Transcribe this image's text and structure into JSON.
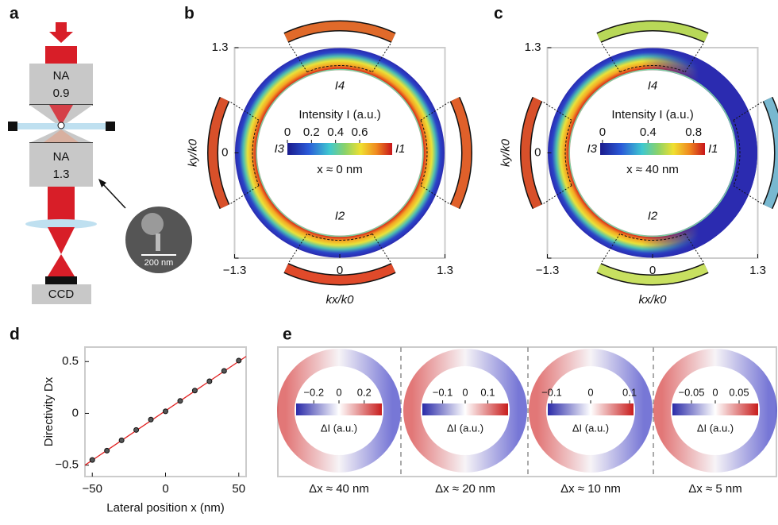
{
  "panel_labels": [
    "a",
    "b",
    "c",
    "d",
    "e"
  ],
  "setup": {
    "objective_top": [
      "NA",
      "0.9"
    ],
    "objective_bottom": [
      "NA",
      "1.3"
    ],
    "detector": "CCD",
    "scale_bar": "200 nm"
  },
  "maps": [
    {
      "xlabel": "kx/k0",
      "ylabel": "ky/k0",
      "xlim": [
        -1.3,
        1.3
      ],
      "xticks": [
        {
          "value": -1.3,
          "label": "−1.3"
        },
        0,
        1.3
      ],
      "ylim": [
        -1.3,
        1.3
      ],
      "yticks": [
        {
          "value": -1.3,
          "label": "−1.3"
        },
        0,
        1.3
      ],
      "regions": [
        "I4",
        "I2"
      ],
      "colorbar": {
        "title": "Intensity I (a.u.)",
        "lim": [
          0,
          0.87
        ],
        "ticks": [
          0,
          0.2,
          0.4,
          0.6
        ],
        "left": "I3",
        "right": "I1",
        "note": "x ≈ 0 nm"
      }
    },
    {
      "xlabel": "kx/k0",
      "ylabel": "ky/k0",
      "xlim": [
        -1.3,
        1.3
      ],
      "xticks": [
        {
          "value": -1.3,
          "label": "−1.3"
        },
        0,
        1.3
      ],
      "ylim": [
        -1.3,
        1.3
      ],
      "yticks": [
        {
          "value": -1.3,
          "label": "−1.3"
        },
        0,
        1.3
      ],
      "regions": [
        "I4",
        "I2"
      ],
      "colorbar": {
        "title": "Intensity I (a.u.)",
        "lim": [
          -0.02,
          0.9
        ],
        "ticks": [
          0,
          0.4,
          0.8
        ],
        "left": "I3",
        "right": "I1",
        "note": "x ≈ 40 nm"
      }
    }
  ],
  "chart_data": {
    "type": "scatter",
    "xlabel": "Lateral position x (nm)",
    "ylabel": "Directivity Dx",
    "x": [
      -50,
      -40,
      -30,
      -20,
      -10,
      0,
      10,
      20,
      30,
      40,
      50
    ],
    "values": [
      -0.45,
      -0.36,
      -0.26,
      -0.16,
      -0.06,
      0.02,
      0.12,
      0.22,
      0.31,
      0.41,
      0.51
    ],
    "color": "#555555",
    "fit": {
      "x": [
        -55,
        55
      ],
      "values": [
        -0.5,
        0.55
      ],
      "color": "#e02020"
    },
    "xlim": [
      -55,
      55
    ],
    "xticks": [
      {
        "value": -50,
        "label": "−50"
      },
      0,
      50
    ],
    "ylim": [
      -0.61,
      0.64
    ],
    "yticks": [
      {
        "value": -0.5,
        "label": "−0.5"
      },
      0,
      0.5
    ]
  },
  "difference_maps": [
    {
      "caption": "Δx ≈ 40 nm",
      "colorbar": {
        "title": "ΔI (a.u.)",
        "lim": [
          -0.34,
          0.34
        ],
        "ticks": [
          {
            "value": -0.2,
            "label": "−0.2"
          },
          0,
          0.2
        ]
      }
    },
    {
      "caption": "Δx ≈ 20 nm",
      "colorbar": {
        "title": "ΔI (a.u.)",
        "lim": [
          -0.19,
          0.19
        ],
        "ticks": [
          {
            "value": -0.1,
            "label": "−0.1"
          },
          0,
          0.1
        ]
      }
    },
    {
      "caption": "Δx ≈ 10 nm",
      "colorbar": {
        "title": "ΔI (a.u.)",
        "lim": [
          -0.11,
          0.11
        ],
        "ticks": [
          {
            "value": -0.1,
            "label": "−0.1"
          },
          0,
          0.1
        ]
      }
    },
    {
      "caption": "Δx ≈ 5 nm",
      "colorbar": {
        "title": "ΔI (a.u.)",
        "lim": [
          -0.09,
          0.09
        ],
        "ticks": [
          {
            "value": -0.05,
            "label": "−0.05"
          },
          0,
          0.05
        ]
      }
    }
  ]
}
